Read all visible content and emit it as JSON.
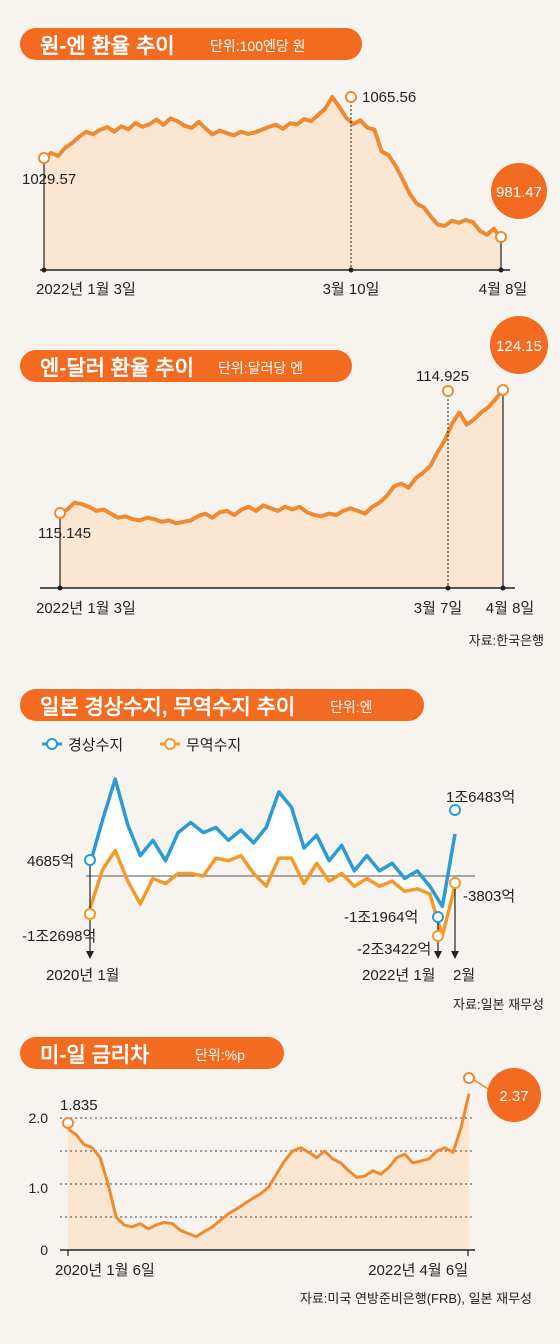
{
  "colors": {
    "accent": "#f26b21",
    "line": "#f08a30",
    "area": "#fbe6d2",
    "current": "#2b9ad6",
    "trade": "#f49a2a",
    "text": "#222222",
    "background": "#f7f4f0"
  },
  "source": {
    "p1": "자료:한국은행",
    "p3": "자료:일본 재무성",
    "p4": "자료:미국 연방준비은행(FRB), 일본 재무성"
  },
  "chart_data": [
    {
      "type": "area",
      "title": "원-엔 환율 추이",
      "unit": "단위:100엔당 원",
      "x_labels": [
        "2022년 1월 3일",
        "3월 10일",
        "4월 8일"
      ],
      "series": [
        {
          "values": [
            1029.57,
            1032.5,
            1030.8,
            1035.6,
            1038.4,
            1042.1,
            1045.0,
            1043.6,
            1046.2,
            1047.8,
            1045.1,
            1048.3,
            1046.5,
            1050.2,
            1048.0,
            1049.5,
            1052.3,
            1049.1,
            1053.0,
            1051.2,
            1048.6,
            1047.3,
            1050.8,
            1046.9,
            1043.5,
            1045.8,
            1044.2,
            1042.9,
            1045.1,
            1043.8,
            1044.6,
            1046.3,
            1047.9,
            1049.2,
            1046.8,
            1050.1,
            1049.4,
            1052.6,
            1051.3,
            1055.0,
            1058.7,
            1065.56,
            1059.8,
            1053.2,
            1049.6,
            1051.8,
            1047.4,
            1046.3,
            1033.5,
            1031.2,
            1025.0,
            1017.1,
            1008.6,
            1002.7,
            1000.4,
            995.1,
            990.3,
            989.5,
            992.6,
            991.4,
            993.0,
            991.7,
            986.6,
            984.3,
            987.9,
            981.47
          ]
        }
      ],
      "annotations": [
        {
          "label": "1029.57",
          "value": 1029.57
        },
        {
          "label": "1065.56",
          "value": 1065.56
        },
        {
          "label": "981.47",
          "value": 981.47
        }
      ]
    },
    {
      "type": "area",
      "title": "엔-달러 환율 추이",
      "unit": "단위:달러당 엔",
      "x_labels": [
        "2022년 1월 3일",
        "3월 7일",
        "4월 8일"
      ],
      "series": [
        {
          "values": [
            115.145,
            115.4,
            115.9,
            115.8,
            115.6,
            115.3,
            115.4,
            115.1,
            114.8,
            114.9,
            114.7,
            114.6,
            114.8,
            114.7,
            114.5,
            114.6,
            114.4,
            114.5,
            114.6,
            114.9,
            115.1,
            114.8,
            115.2,
            115.3,
            115.0,
            115.4,
            115.6,
            115.3,
            115.7,
            115.5,
            115.3,
            115.6,
            115.4,
            115.6,
            115.2,
            115.0,
            114.9,
            115.1,
            115.0,
            115.3,
            115.5,
            115.3,
            115.1,
            115.6,
            115.9,
            116.4,
            117.1,
            117.3,
            117.0,
            117.7,
            118.1,
            118.6,
            119.6,
            120.5,
            121.7,
            122.5,
            121.6,
            122.0,
            122.5,
            122.9,
            123.5,
            124.15
          ]
        }
      ],
      "annotations": [
        {
          "label": "115.145",
          "value": 115.145
        },
        {
          "label": "114.925",
          "value": 114.925
        },
        {
          "label": "124.15",
          "value": 124.15
        }
      ]
    },
    {
      "type": "line",
      "title": "일본 경상수지, 무역수지 추이",
      "unit": "단위:엔",
      "x_labels": [
        "2020년 1월",
        "2022년 1월",
        "2월"
      ],
      "series": [
        {
          "name": "경상수지",
          "values": [
            4685,
            22000,
            38000,
            20000,
            8000,
            14000,
            6000,
            17000,
            21000,
            17000,
            19000,
            14000,
            18000,
            13000,
            19000,
            33000,
            27000,
            11000,
            16000,
            6000,
            12000,
            2000,
            8000,
            2000,
            5000,
            -1000,
            2000,
            -4000,
            -11964,
            16483
          ]
        },
        {
          "name": "무역수지",
          "values": [
            -12698,
            2500,
            10000,
            -2000,
            -11000,
            -1000,
            -3000,
            1000,
            1000,
            0,
            7000,
            6000,
            8000,
            1000,
            -4000,
            7000,
            7000,
            -3000,
            5000,
            -2000,
            1000,
            -4000,
            -1000,
            -4000,
            -2000,
            -6000,
            -5000,
            -7000,
            -23422,
            -3803
          ]
        }
      ],
      "annotations": [
        {
          "label": "4685억",
          "value": 4685
        },
        {
          "label": "-1조2698억",
          "value": -12698
        },
        {
          "label": "1조6483억",
          "value": 16483
        },
        {
          "label": "-3803억",
          "value": -3803
        },
        {
          "label": "-1조1964억",
          "value": -11964
        },
        {
          "label": "-2조3422억",
          "value": -23422
        }
      ]
    },
    {
      "type": "area",
      "title": "미-일 금리차",
      "unit": "단위:%p",
      "x_labels": [
        "2020년 1월 6일",
        "2022년 4월 6일"
      ],
      "ylim": [
        0,
        2.4
      ],
      "y_ticks": [
        "0",
        "1.0",
        "2.0"
      ],
      "grid": "dashed",
      "series": [
        {
          "values": [
            1.835,
            1.75,
            1.6,
            1.55,
            1.4,
            1.0,
            0.5,
            0.38,
            0.35,
            0.4,
            0.32,
            0.38,
            0.42,
            0.4,
            0.3,
            0.25,
            0.2,
            0.28,
            0.35,
            0.45,
            0.55,
            0.62,
            0.7,
            0.78,
            0.85,
            0.95,
            1.15,
            1.35,
            1.5,
            1.55,
            1.48,
            1.4,
            1.5,
            1.38,
            1.32,
            1.2,
            1.1,
            1.12,
            1.2,
            1.15,
            1.25,
            1.4,
            1.45,
            1.32,
            1.35,
            1.38,
            1.5,
            1.55,
            1.48,
            1.85,
            2.37
          ]
        }
      ],
      "annotations": [
        {
          "label": "1.835",
          "value": 1.835
        },
        {
          "label": "2.37",
          "value": 2.37
        }
      ]
    }
  ]
}
